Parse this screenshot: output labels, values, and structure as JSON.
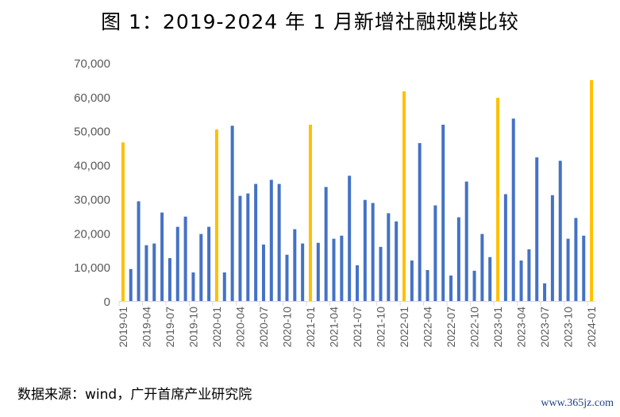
{
  "chart_data": {
    "type": "bar",
    "title": "图 1：2019-2024 年 1 月新增社融规模比较",
    "xlabel": "",
    "ylabel": "",
    "ylim": [
      0,
      70000
    ],
    "yticks": [
      0,
      10000,
      20000,
      30000,
      40000,
      50000,
      60000,
      70000
    ],
    "ytick_labels": [
      "0",
      "10,000",
      "20,000",
      "30,000",
      "40,000",
      "50,000",
      "60,000",
      "70,000"
    ],
    "grid": false,
    "colors": {
      "january": "#FFC000",
      "other": "#4472C4"
    },
    "categories": [
      "2019-01",
      "2019-02",
      "2019-03",
      "2019-04",
      "2019-05",
      "2019-06",
      "2019-07",
      "2019-08",
      "2019-09",
      "2019-10",
      "2019-11",
      "2019-12",
      "2020-01",
      "2020-02",
      "2020-03",
      "2020-04",
      "2020-05",
      "2020-06",
      "2020-07",
      "2020-08",
      "2020-09",
      "2020-10",
      "2020-11",
      "2020-12",
      "2021-01",
      "2021-02",
      "2021-03",
      "2021-04",
      "2021-05",
      "2021-06",
      "2021-07",
      "2021-08",
      "2021-09",
      "2021-10",
      "2021-11",
      "2021-12",
      "2022-01",
      "2022-02",
      "2022-03",
      "2022-04",
      "2022-05",
      "2022-06",
      "2022-07",
      "2022-08",
      "2022-09",
      "2022-10",
      "2022-11",
      "2022-12",
      "2023-01",
      "2023-02",
      "2023-03",
      "2023-04",
      "2023-05",
      "2023-06",
      "2023-07",
      "2023-08",
      "2023-09",
      "2023-10",
      "2023-11",
      "2023-12",
      "2024-01"
    ],
    "values": [
      46600,
      9400,
      29300,
      16400,
      16900,
      26000,
      12600,
      21800,
      24800,
      8400,
      19700,
      21800,
      50400,
      8400,
      51500,
      30900,
      31600,
      34400,
      16600,
      35600,
      34400,
      13600,
      21100,
      16900,
      51800,
      17100,
      33500,
      18300,
      19200,
      36800,
      10500,
      29700,
      28800,
      15900,
      25800,
      23400,
      61600,
      11900,
      46400,
      9100,
      28100,
      51800,
      7500,
      24600,
      35100,
      8900,
      19700,
      12900,
      59700,
      31400,
      53600,
      11900,
      15200,
      42200,
      5200,
      31100,
      41200,
      18300,
      24400,
      19200,
      64900
    ],
    "label_every": 3
  },
  "footer": {
    "source": "数据来源：wind，广开首席产业研究院",
    "watermark": "www.365jz.com"
  }
}
